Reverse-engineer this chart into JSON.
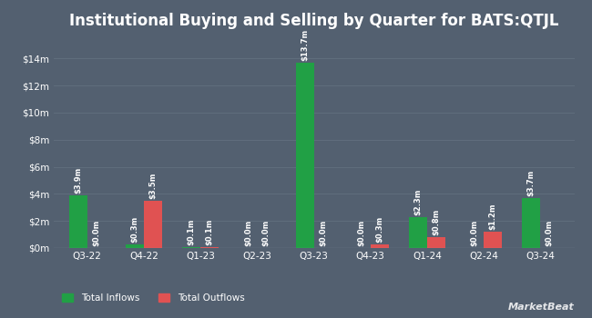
{
  "title": "Institutional Buying and Selling by Quarter for BATS:QTJL",
  "quarters": [
    "Q3-22",
    "Q4-22",
    "Q1-23",
    "Q2-23",
    "Q3-23",
    "Q4-23",
    "Q1-24",
    "Q2-24",
    "Q3-24"
  ],
  "inflows": [
    3.9,
    0.3,
    0.1,
    0.0,
    13.7,
    0.0,
    2.3,
    0.0,
    3.7
  ],
  "outflows": [
    0.0,
    3.5,
    0.1,
    0.0,
    0.0,
    0.3,
    0.8,
    1.2,
    0.0
  ],
  "inflow_labels": [
    "$3.9m",
    "$0.3m",
    "$0.1m",
    "$0.0m",
    "$13.7m",
    "$0.0m",
    "$2.3m",
    "$0.0m",
    "$3.7m"
  ],
  "outflow_labels": [
    "$0.0m",
    "$3.5m",
    "$0.1m",
    "$0.0m",
    "$0.0m",
    "$0.3m",
    "$0.8m",
    "$1.2m",
    "$0.0m"
  ],
  "inflow_color": "#21a045",
  "outflow_color": "#e05252",
  "background_color": "#536070",
  "plot_bg_color": "#536070",
  "grid_color": "#62707f",
  "text_color": "#ffffff",
  "title_fontsize": 12,
  "label_fontsize": 6.0,
  "tick_fontsize": 7.5,
  "legend_fontsize": 7.5,
  "bar_width": 0.32,
  "ylim": [
    0,
    15.5
  ],
  "yticks": [
    0,
    2,
    4,
    6,
    8,
    10,
    12,
    14
  ],
  "ytick_labels": [
    "$0m",
    "$2m",
    "$4m",
    "$6m",
    "$8m",
    "$10m",
    "$12m",
    "$14m"
  ],
  "legend_inflow": "Total Inflows",
  "legend_outflow": "Total Outflows",
  "watermark": "⨏MarketBeat"
}
